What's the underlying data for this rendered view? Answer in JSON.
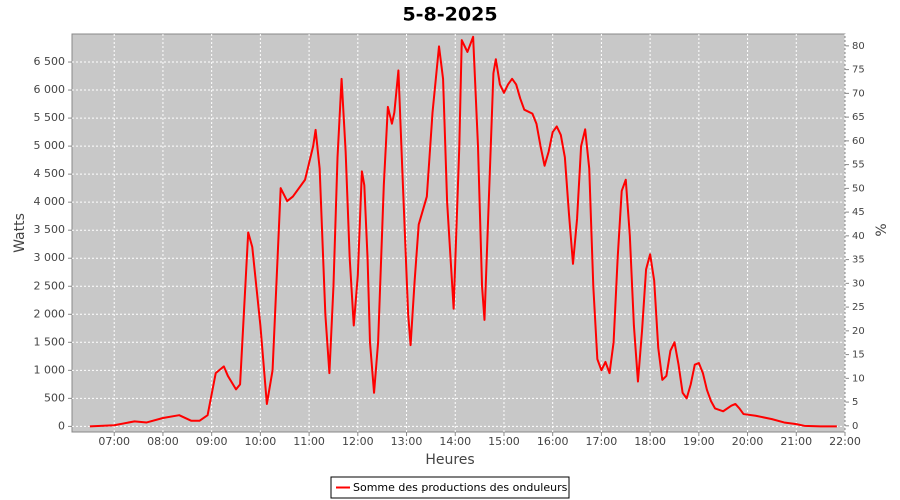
{
  "chart_data": {
    "type": "line",
    "title": "5-8-2025",
    "x_label": "Heures",
    "y_label": "Watts",
    "y2_label": "%",
    "x": [
      "06:30",
      "07:00",
      "07:25",
      "07:40",
      "08:00",
      "08:20",
      "08:35",
      "08:45",
      "08:55",
      "09:05",
      "09:15",
      "09:20",
      "09:30",
      "09:35",
      "09:45",
      "09:50",
      "10:00",
      "10:08",
      "10:15",
      "10:25",
      "10:33",
      "10:40",
      "10:55",
      "11:05",
      "11:08",
      "11:13",
      "11:20",
      "11:25",
      "11:30",
      "11:35",
      "11:40",
      "11:45",
      "11:50",
      "11:55",
      "12:00",
      "12:05",
      "12:08",
      "12:12",
      "12:15",
      "12:20",
      "12:25",
      "12:32",
      "12:37",
      "12:42",
      "12:45",
      "12:50",
      "12:55",
      "13:02",
      "13:05",
      "13:10",
      "13:15",
      "13:25",
      "13:32",
      "13:40",
      "13:45",
      "13:50",
      "13:58",
      "14:05",
      "14:08",
      "14:15",
      "14:22",
      "14:28",
      "14:33",
      "14:36",
      "14:40",
      "14:47",
      "14:50",
      "14:55",
      "15:00",
      "15:05",
      "15:10",
      "15:15",
      "15:20",
      "15:25",
      "15:35",
      "15:40",
      "15:45",
      "15:50",
      "15:55",
      "16:00",
      "16:05",
      "16:10",
      "16:15",
      "16:20",
      "16:25",
      "16:30",
      "16:35",
      "16:40",
      "16:45",
      "16:50",
      "16:55",
      "17:00",
      "17:05",
      "17:10",
      "17:15",
      "17:20",
      "17:25",
      "17:30",
      "17:35",
      "17:40",
      "17:45",
      "17:50",
      "17:55",
      "18:00",
      "18:05",
      "18:10",
      "18:15",
      "18:20",
      "18:25",
      "18:30",
      "18:35",
      "18:40",
      "18:45",
      "18:50",
      "18:55",
      "19:00",
      "19:05",
      "19:10",
      "19:15",
      "19:20",
      "19:30",
      "19:40",
      "19:45",
      "19:50",
      "19:55",
      "20:10",
      "20:30",
      "20:45",
      "21:00",
      "21:10",
      "21:30",
      "21:50"
    ],
    "series": [
      {
        "name": "Somme des productions des onduleurs",
        "color": "#ff0000",
        "values": [
          0,
          20,
          90,
          70,
          150,
          200,
          100,
          100,
          200,
          950,
          1070,
          900,
          660,
          750,
          3460,
          3200,
          1800,
          400,
          1000,
          4250,
          4020,
          4100,
          4400,
          5000,
          5290,
          4600,
          2000,
          950,
          2500,
          4800,
          6200,
          4900,
          3000,
          1800,
          2700,
          4550,
          4300,
          3000,
          1500,
          600,
          1500,
          4300,
          5700,
          5400,
          5600,
          6350,
          4500,
          2000,
          1450,
          2600,
          3600,
          4100,
          5600,
          6780,
          6200,
          4000,
          2100,
          5000,
          6890,
          6680,
          6950,
          5000,
          2500,
          1900,
          3500,
          6300,
          6550,
          6100,
          5950,
          6100,
          6200,
          6100,
          5850,
          5650,
          5580,
          5400,
          5000,
          4650,
          4900,
          5250,
          5350,
          5200,
          4800,
          3800,
          2900,
          3700,
          5000,
          5300,
          4600,
          2500,
          1200,
          1000,
          1150,
          950,
          1500,
          3000,
          4200,
          4400,
          3400,
          1800,
          800,
          1700,
          2800,
          3070,
          2600,
          1400,
          830,
          900,
          1350,
          1500,
          1100,
          600,
          500,
          750,
          1100,
          1130,
          950,
          650,
          450,
          320,
          270,
          370,
          400,
          320,
          220,
          190,
          130,
          70,
          40,
          10,
          0,
          0
        ]
      }
    ],
    "xlim": [
      "06:08",
      "22:00"
    ],
    "xticks": [
      "07:00",
      "08:00",
      "09:00",
      "10:00",
      "11:00",
      "12:00",
      "13:00",
      "14:00",
      "15:00",
      "16:00",
      "17:00",
      "18:00",
      "19:00",
      "20:00",
      "21:00",
      "22:00"
    ],
    "ylim": [
      -100,
      7000
    ],
    "yticks": [
      0,
      500,
      {
        "value": 1000,
        "label": "1 000"
      },
      {
        "value": 1500,
        "label": "1 500"
      },
      {
        "value": 2000,
        "label": "2 000"
      },
      {
        "value": 2500,
        "label": "2 500"
      },
      {
        "value": 3000,
        "label": "3 000"
      },
      {
        "value": 3500,
        "label": "3 500"
      },
      {
        "value": 4000,
        "label": "4 000"
      },
      {
        "value": 4500,
        "label": "4 500"
      },
      {
        "value": 5000,
        "label": "5 000"
      },
      {
        "value": 5500,
        "label": "5 500"
      },
      {
        "value": 6000,
        "label": "6 000"
      },
      {
        "value": 6500,
        "label": "6 500"
      }
    ],
    "y2lim": [
      -1.3,
      82.5
    ],
    "y2ticks": [
      0,
      5,
      10,
      15,
      20,
      25,
      30,
      35,
      40,
      45,
      50,
      55,
      60,
      65,
      70,
      75,
      80
    ],
    "grid": true
  }
}
